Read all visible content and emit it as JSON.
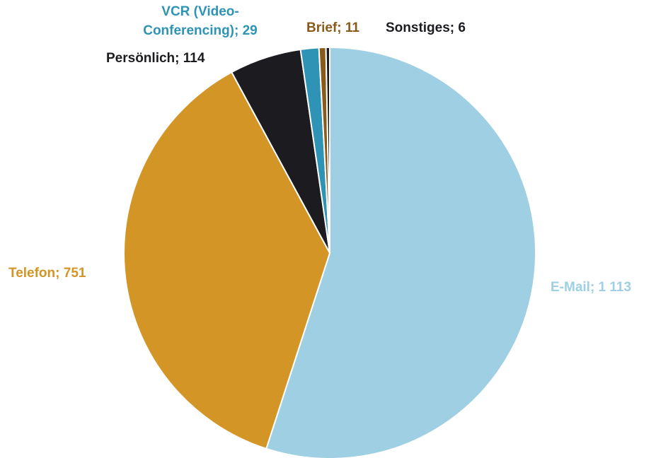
{
  "chart_data": {
    "type": "pie",
    "values": [
      1113,
      751,
      114,
      29,
      11,
      6
    ],
    "value_labels": [
      "E-Mail; 1 113",
      "Telefon; 751",
      "Persönlich; 114",
      "VCR (Video-\nConferencing); 29",
      "Brief; 11",
      "Sonstiges; 6"
    ],
    "colors": [
      "#9ecfe2",
      "#d39526",
      "#1c1c20",
      "#2e93b5",
      "#8a5a1a",
      "#1c1c20"
    ],
    "label_colors": [
      "#9ecfe2",
      "#d39526",
      "#1c1c20",
      "#2e93b5",
      "#8a5a1a",
      "#1c1c20"
    ]
  }
}
